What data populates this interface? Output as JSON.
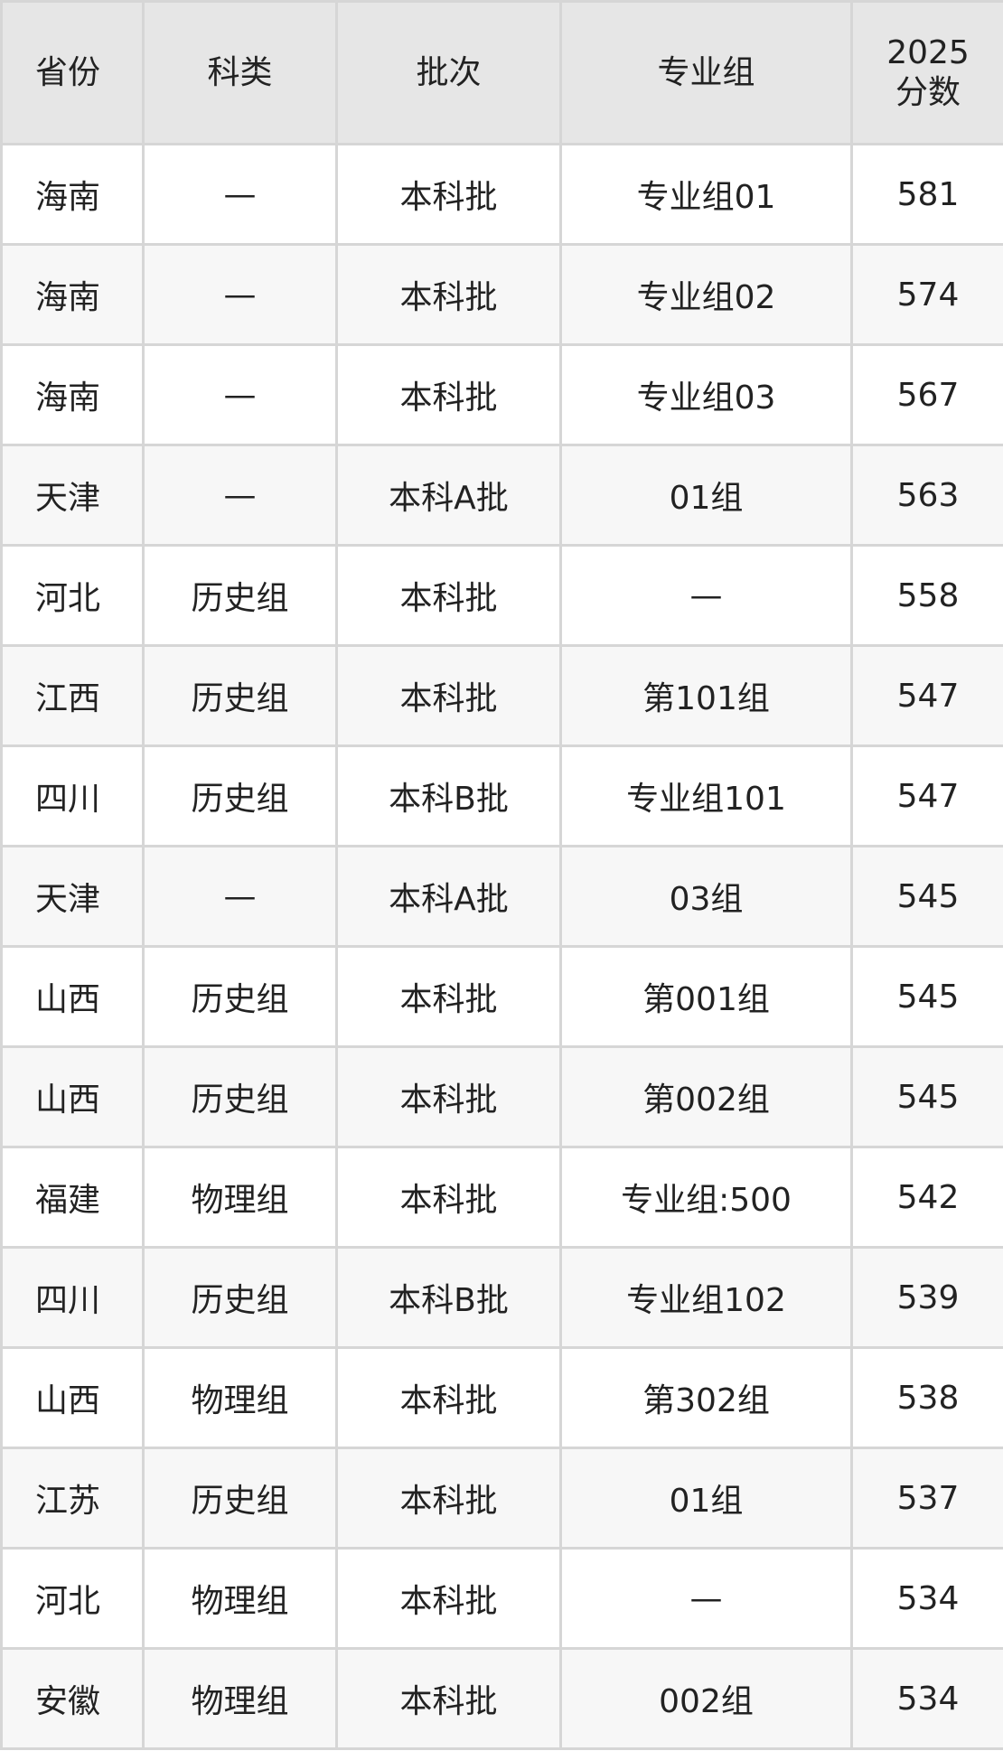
{
  "headers": [
    "省份",
    "科类",
    "批次",
    "专业组",
    "2025\n分数"
  ],
  "header_score_line1": "2025",
  "header_score_line2": "分数",
  "rows": [
    [
      "海南",
      "—",
      "本科批",
      "专业组01",
      "581"
    ],
    [
      "海南",
      "—",
      "本科批",
      "专业组02",
      "574"
    ],
    [
      "海南",
      "—",
      "本科批",
      "专业组03",
      "567"
    ],
    [
      "天津",
      "—",
      "本科A批",
      "01组",
      "563"
    ],
    [
      "河北",
      "历史组",
      "本科批",
      "—",
      "558"
    ],
    [
      "江西",
      "历史组",
      "本科批",
      "第101组",
      "547"
    ],
    [
      "四川",
      "历史组",
      "本科B批",
      "专业组101",
      "547"
    ],
    [
      "天津",
      "—",
      "本科A批",
      "03组",
      "545"
    ],
    [
      "山西",
      "历史组",
      "本科批",
      "第001组",
      "545"
    ],
    [
      "山西",
      "历史组",
      "本科批",
      "第002组",
      "545"
    ],
    [
      "福建",
      "物理组",
      "本科批",
      "专业组:500",
      "542"
    ],
    [
      "四川",
      "历史组",
      "本科B批",
      "专业组102",
      "539"
    ],
    [
      "山西",
      "物理组",
      "本科批",
      "第302组",
      "538"
    ],
    [
      "江苏",
      "历史组",
      "本科批",
      "01组",
      "537"
    ],
    [
      "河北",
      "物理组",
      "本科批",
      "—",
      "534"
    ],
    [
      "安徽",
      "物理组",
      "本科批",
      "002组",
      "534"
    ]
  ]
}
